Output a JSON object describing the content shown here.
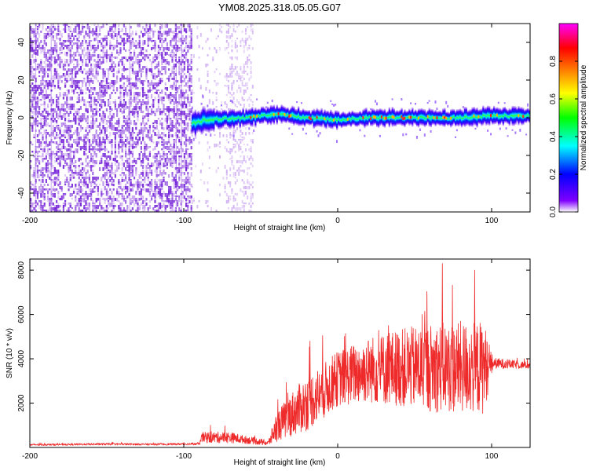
{
  "title": "YM08.2025.318.05.05.G07",
  "colors": {
    "snr_line": "#ee2a2a",
    "speckle": "#7a2bd9",
    "speckle_light": "#c9a3f0"
  },
  "chart_data": [
    {
      "type": "heatmap",
      "name": "spectrogram",
      "xlabel": "Height of straight line (km)",
      "ylabel": "Frequency (Hz)",
      "xlim": [
        -200,
        125
      ],
      "ylim": [
        -50,
        50
      ],
      "x_ticks": [
        -200,
        -100,
        0,
        100
      ],
      "x_tick_labels": [
        "-200",
        "-100",
        "0",
        "100"
      ],
      "y_ticks": [
        -40,
        -20,
        0,
        20,
        40
      ],
      "y_tick_labels": [
        "-40",
        "-20",
        "0",
        "20",
        "40"
      ],
      "colorbar": {
        "label": "Normalized spectral amplitude",
        "range": [
          0,
          1
        ],
        "ticks": [
          0.0,
          0.2,
          0.4,
          0.6,
          0.8
        ],
        "tick_labels": [
          "0.0",
          "0.2",
          "0.4",
          "0.6",
          "0.8"
        ],
        "colormap": [
          "#ffffff",
          "#8000ff",
          "#0000ff",
          "#00ffff",
          "#00ff00",
          "#ffff00",
          "#ff8000",
          "#ff0000",
          "#ff00ff"
        ]
      },
      "noise_region_x": [
        -200,
        -95
      ],
      "sparse_region_x": [
        -95,
        -55
      ],
      "signal_band": {
        "x_start": -95,
        "x_end": 125,
        "center_freq": [
          [
            -95,
            -3
          ],
          [
            -85,
            -1
          ],
          [
            -60,
            0
          ],
          [
            -40,
            2
          ],
          [
            -20,
            0
          ],
          [
            0,
            -1
          ],
          [
            20,
            0
          ],
          [
            40,
            0
          ],
          [
            60,
            0
          ],
          [
            80,
            0
          ],
          [
            100,
            1
          ],
          [
            125,
            1
          ]
        ],
        "half_width_hz": 4
      }
    },
    {
      "type": "line",
      "name": "snr",
      "xlabel": "Height of straight line (km)",
      "ylabel": "SNR (10 * v/v)",
      "xlim": [
        -200,
        125
      ],
      "ylim": [
        0,
        8500
      ],
      "x_ticks": [
        -200,
        -100,
        0,
        100
      ],
      "x_tick_labels": [
        "-200",
        "-100",
        "0",
        "100"
      ],
      "y_ticks": [
        2000,
        4000,
        6000,
        8000
      ],
      "y_tick_labels": [
        "2000",
        "4000",
        "6000",
        "8000"
      ],
      "envelope": [
        {
          "x": -200,
          "base": 120,
          "spread": 80
        },
        {
          "x": -150,
          "base": 150,
          "spread": 90
        },
        {
          "x": -120,
          "base": 140,
          "spread": 80
        },
        {
          "x": -90,
          "base": 160,
          "spread": 100
        },
        {
          "x": -88,
          "base": 450,
          "spread": 500
        },
        {
          "x": -70,
          "base": 450,
          "spread": 500
        },
        {
          "x": -60,
          "base": 350,
          "spread": 350
        },
        {
          "x": -45,
          "base": 200,
          "spread": 250
        },
        {
          "x": -40,
          "base": 900,
          "spread": 1300
        },
        {
          "x": -30,
          "base": 1500,
          "spread": 2000
        },
        {
          "x": -20,
          "base": 2000,
          "spread": 2500
        },
        {
          "x": -10,
          "base": 2500,
          "spread": 2500
        },
        {
          "x": 0,
          "base": 3100,
          "spread": 2500
        },
        {
          "x": 20,
          "base": 3500,
          "spread": 3000
        },
        {
          "x": 40,
          "base": 3600,
          "spread": 3500
        },
        {
          "x": 60,
          "base": 3600,
          "spread": 4000
        },
        {
          "x": 80,
          "base": 3600,
          "spread": 4200
        },
        {
          "x": 95,
          "base": 3600,
          "spread": 4200
        },
        {
          "x": 101,
          "base": 3800,
          "spread": 500
        },
        {
          "x": 125,
          "base": 3700,
          "spread": 300
        }
      ],
      "peaks": [
        {
          "x": 68,
          "y": 8300
        },
        {
          "x": 89,
          "y": 8000
        },
        {
          "x": 58,
          "y": 6900
        },
        {
          "x": 33,
          "y": 5500
        },
        {
          "x": -18,
          "y": 4800
        }
      ]
    }
  ]
}
